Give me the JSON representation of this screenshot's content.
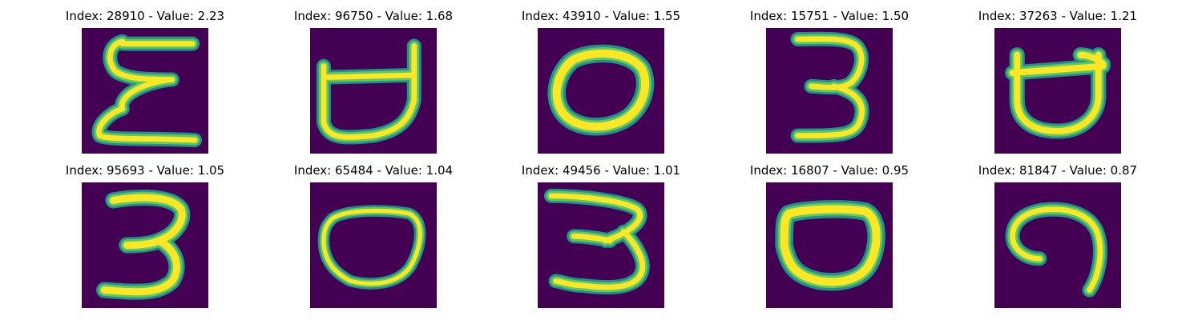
{
  "colors": {
    "background": "#440154",
    "stroke_outer": "#21918c",
    "stroke_mid": "#5ec962",
    "stroke_core": "#fde725"
  },
  "panels": [
    {
      "title": "Index: 28910 - Value: 2.23",
      "index": 28910,
      "value": 2.23,
      "digit": "3"
    },
    {
      "title": "Index: 96750 - Value: 1.68",
      "index": 96750,
      "value": 1.68,
      "digit": "0"
    },
    {
      "title": "Index: 43910 - Value: 1.55",
      "index": 43910,
      "value": 1.55,
      "digit": "0"
    },
    {
      "title": "Index: 15751 - Value: 1.50",
      "index": 15751,
      "value": 1.5,
      "digit": "3"
    },
    {
      "title": "Index: 37263 - Value: 1.21",
      "index": 37263,
      "value": 1.21,
      "digit": "0"
    },
    {
      "title": "Index: 95693 - Value: 1.05",
      "index": 95693,
      "value": 1.05,
      "digit": "3"
    },
    {
      "title": "Index: 65484 - Value: 1.04",
      "index": 65484,
      "value": 1.04,
      "digit": "0"
    },
    {
      "title": "Index: 49456 - Value: 1.01",
      "index": 49456,
      "value": 1.01,
      "digit": "3"
    },
    {
      "title": "Index: 16807 - Value: 0.95",
      "index": 16807,
      "value": 0.95,
      "digit": "0"
    },
    {
      "title": "Index: 81847 - Value: 0.87",
      "index": 81847,
      "value": 0.87,
      "digit": "9"
    }
  ]
}
